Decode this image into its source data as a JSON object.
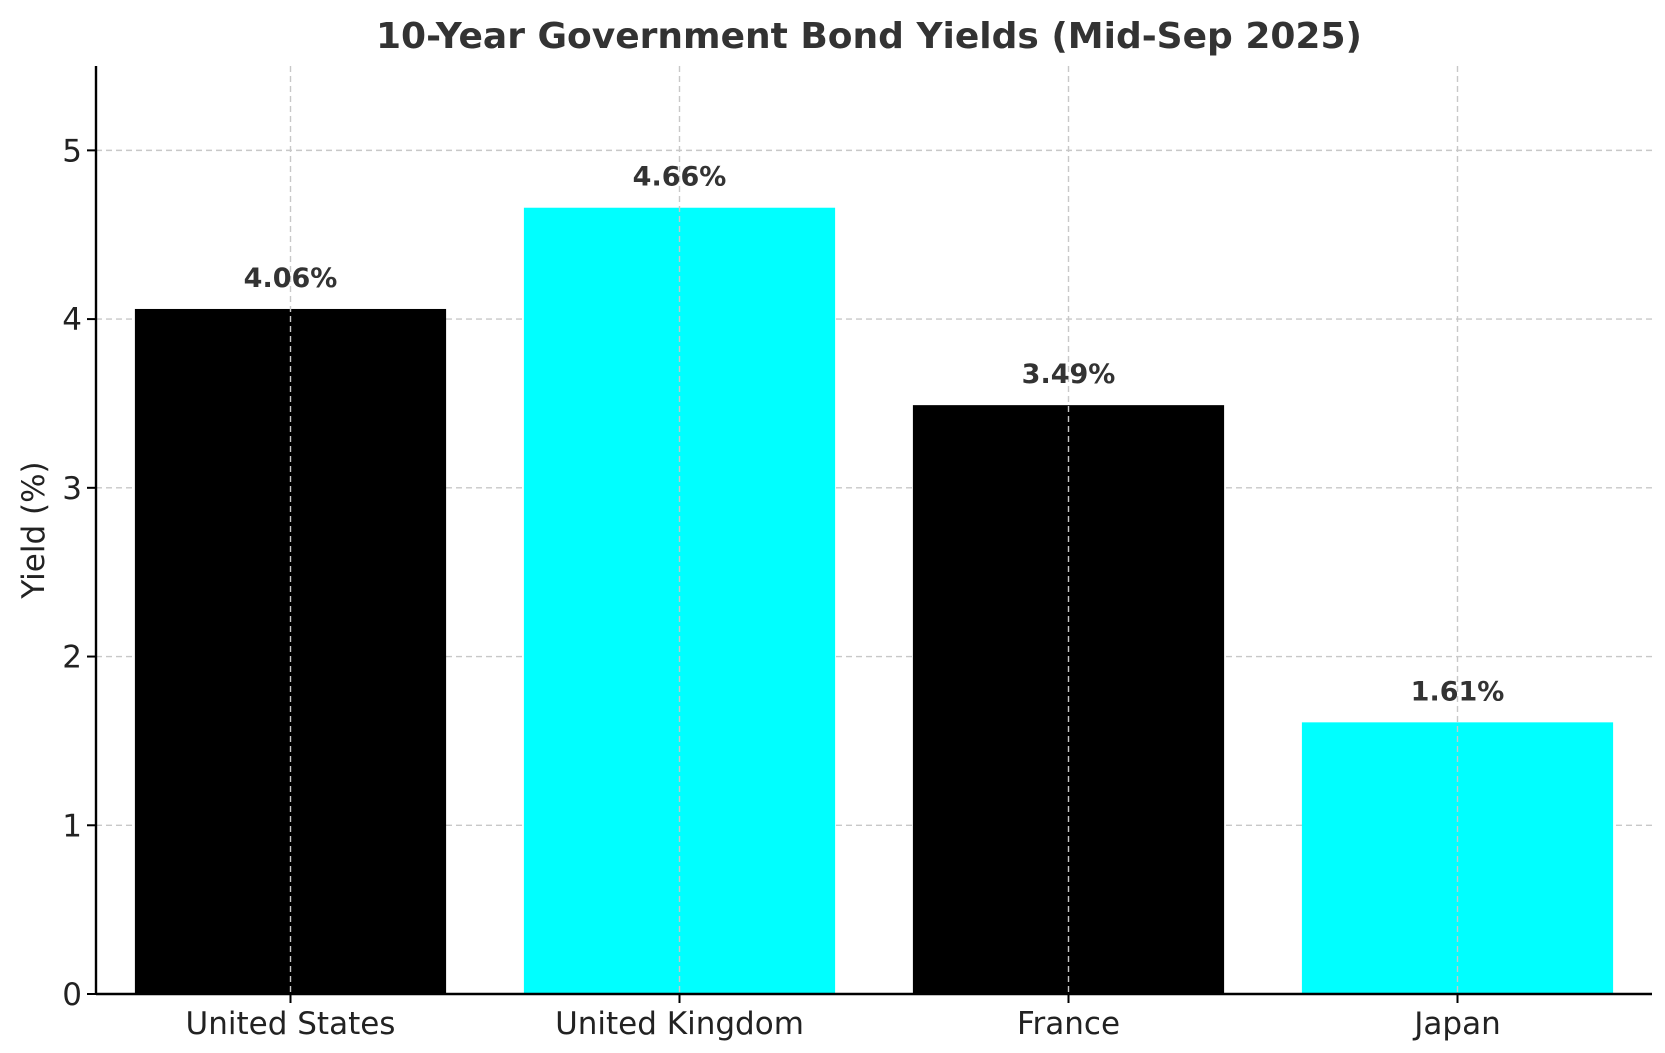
{
  "chart_data": {
    "type": "bar",
    "title": "10-Year Government Bond Yields (Mid-Sep 2025)",
    "xlabel": "",
    "ylabel": "Yield (%)",
    "categories": [
      "United States",
      "United Kingdom",
      "France",
      "Japan"
    ],
    "values": [
      4.06,
      4.66,
      3.49,
      1.61
    ],
    "data_labels": [
      "4.06%",
      "4.66%",
      "3.49%",
      "1.61%"
    ],
    "bar_colors": [
      "#000000",
      "#00ffff",
      "#000000",
      "#00ffff"
    ],
    "ylim": [
      0,
      5.5
    ],
    "yticks": [
      0,
      1,
      2,
      3,
      4,
      5
    ],
    "ytick_labels": [
      "0",
      "1",
      "2",
      "3",
      "4",
      "5"
    ],
    "grid": true
  }
}
